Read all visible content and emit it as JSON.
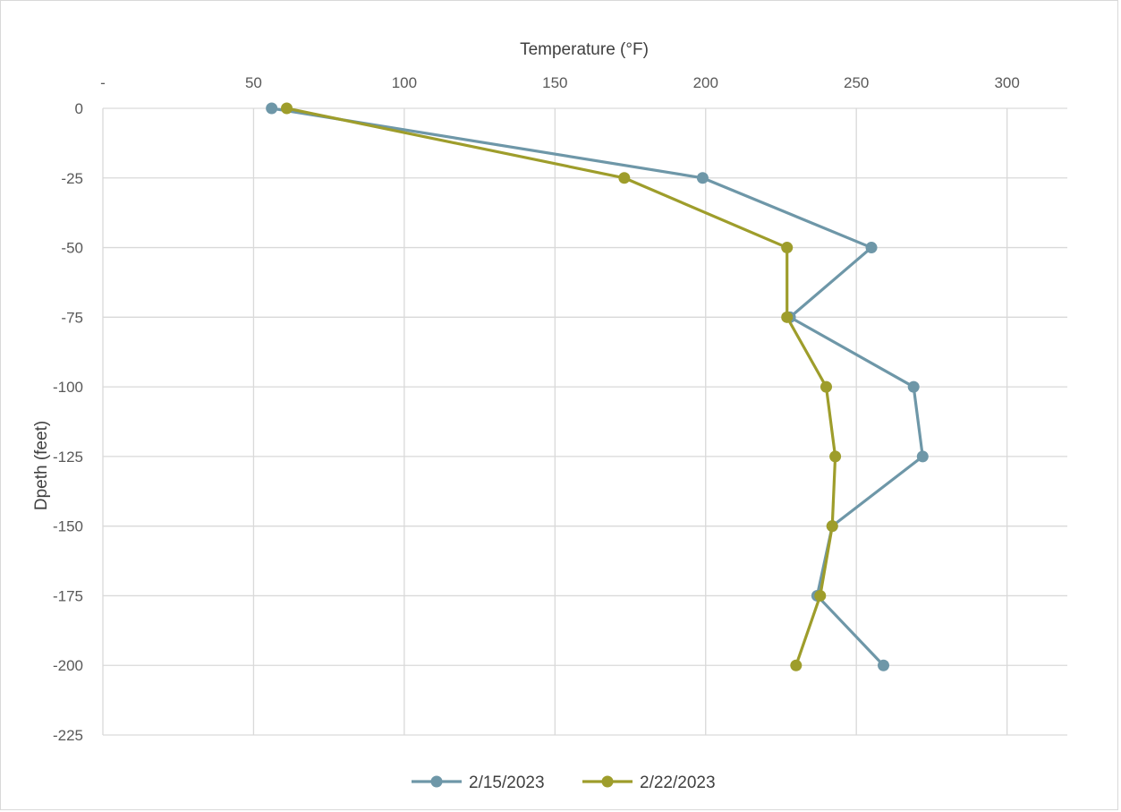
{
  "chart_data": {
    "type": "line",
    "title": "",
    "xlabel": "Temperature (°F)",
    "ylabel": "Dpeth (feet)",
    "x_axis_position": "top",
    "xlim": [
      0,
      320
    ],
    "ylim": [
      -225,
      0
    ],
    "x_ticks": [
      0,
      50,
      100,
      150,
      200,
      250,
      300
    ],
    "x_tick_labels": [
      "-",
      "50",
      "100",
      "150",
      "200",
      "250",
      "300"
    ],
    "y_ticks": [
      0,
      -25,
      -50,
      -75,
      -100,
      -125,
      -150,
      -175,
      -200,
      -225
    ],
    "y_tick_labels": [
      "0",
      "-25",
      "-50",
      "-75",
      "-100",
      "-125",
      "-150",
      "-175",
      "-200",
      "-225"
    ],
    "grid": true,
    "legend_position": "bottom",
    "series": [
      {
        "name": "2/15/2023",
        "color": "#6e97a8",
        "points": [
          {
            "x": 56,
            "y": 0
          },
          {
            "x": 199,
            "y": -25
          },
          {
            "x": 255,
            "y": -50
          },
          {
            "x": 228,
            "y": -75
          },
          {
            "x": 269,
            "y": -100
          },
          {
            "x": 272,
            "y": -125
          },
          {
            "x": 242,
            "y": -150
          },
          {
            "x": 237,
            "y": -175
          },
          {
            "x": 259,
            "y": -200
          }
        ]
      },
      {
        "name": "2/22/2023",
        "color": "#9e9d2b",
        "points": [
          {
            "x": 61,
            "y": 0
          },
          {
            "x": 173,
            "y": -25
          },
          {
            "x": 227,
            "y": -50
          },
          {
            "x": 227,
            "y": -75
          },
          {
            "x": 240,
            "y": -100
          },
          {
            "x": 243,
            "y": -125
          },
          {
            "x": 242,
            "y": -150
          },
          {
            "x": 238,
            "y": -175
          },
          {
            "x": 230,
            "y": -200
          }
        ]
      }
    ]
  }
}
